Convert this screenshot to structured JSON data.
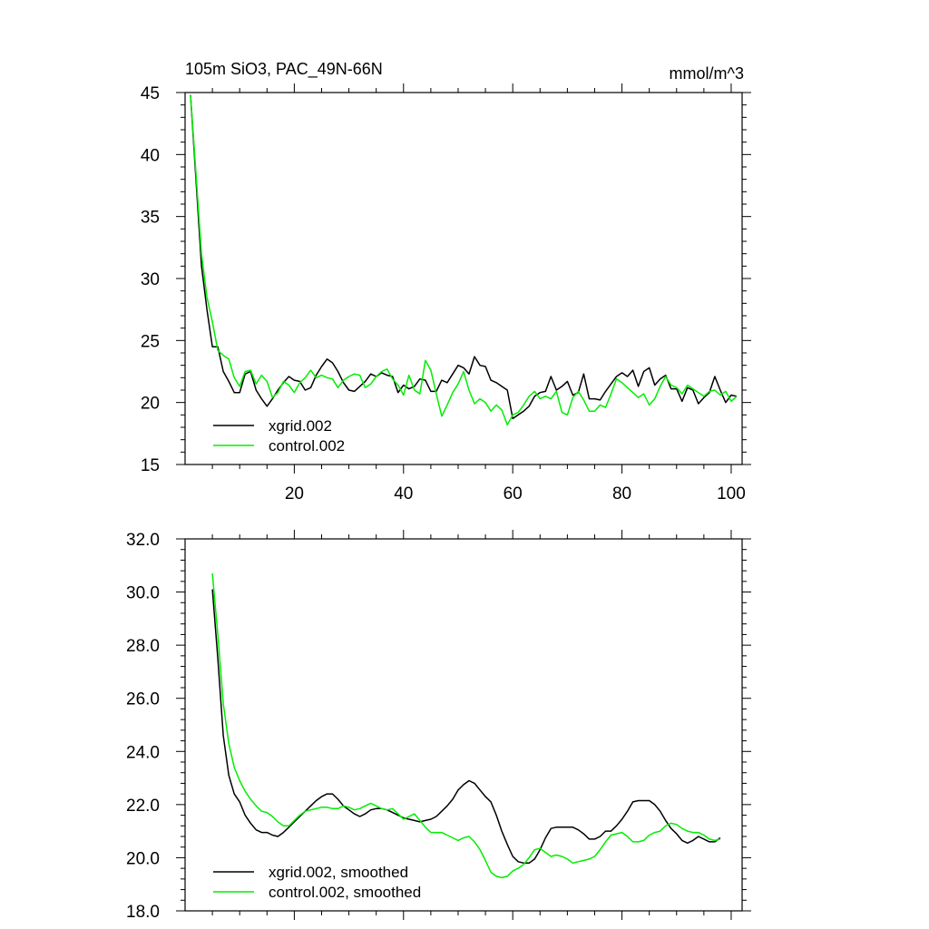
{
  "chart_data": [
    {
      "type": "line",
      "title": "105m SiO3, PAC_49N-66N",
      "units": "mmol/m^3",
      "xlim": [
        0,
        102
      ],
      "ylim": [
        15,
        45
      ],
      "xticks": [
        20,
        40,
        60,
        80,
        100
      ],
      "xtick_labels": [
        "20",
        "40",
        "60",
        "80",
        "100"
      ],
      "yticks": [
        15,
        20,
        25,
        30,
        35,
        40,
        45
      ],
      "ytick_labels": [
        "15",
        "20",
        "25",
        "30",
        "35",
        "40",
        "45"
      ],
      "grid": false,
      "legend_position": "bottom-left",
      "series": [
        {
          "name": "xgrid.002",
          "color": "#000000",
          "x": [
            1,
            2,
            3,
            4,
            5,
            6,
            7,
            8,
            9,
            10,
            11,
            12,
            13,
            14,
            15,
            16,
            17,
            18,
            19,
            20,
            21,
            22,
            23,
            24,
            25,
            26,
            27,
            28,
            29,
            30,
            31,
            32,
            33,
            34,
            35,
            36,
            37,
            38,
            39,
            40,
            41,
            42,
            43,
            44,
            45,
            46,
            47,
            48,
            49,
            50,
            51,
            52,
            53,
            54,
            55,
            56,
            57,
            58,
            59,
            60,
            61,
            62,
            63,
            64,
            65,
            66,
            67,
            68,
            69,
            70,
            71,
            72,
            73,
            74,
            75,
            76,
            77,
            78,
            79,
            80,
            81,
            82,
            83,
            84,
            85,
            86,
            87,
            88,
            89,
            90,
            91,
            92,
            93,
            94,
            95,
            96,
            97,
            98,
            99,
            100,
            101
          ],
          "values": [
            44.8,
            38.0,
            31.0,
            27.5,
            24.5,
            24.5,
            22.5,
            21.7,
            20.8,
            20.8,
            22.3,
            22.5,
            21.0,
            20.3,
            19.7,
            20.3,
            21.0,
            21.6,
            22.1,
            21.8,
            21.7,
            21.0,
            21.2,
            22.2,
            22.9,
            23.5,
            23.2,
            22.5,
            21.6,
            21.0,
            20.9,
            21.3,
            21.7,
            22.3,
            22.1,
            22.4,
            22.2,
            22.1,
            20.8,
            21.4,
            21.1,
            21.3,
            21.9,
            21.8,
            20.9,
            20.9,
            21.8,
            21.6,
            22.3,
            23.0,
            22.8,
            22.3,
            23.7,
            23.0,
            22.9,
            21.8,
            21.6,
            21.3,
            21.0,
            18.7,
            19.0,
            19.3,
            19.7,
            20.5,
            20.8,
            20.9,
            22.1,
            21.0,
            21.3,
            21.7,
            20.6,
            20.8,
            22.3,
            20.3,
            20.3,
            20.2,
            20.9,
            21.5,
            22.1,
            22.4,
            22.1,
            22.6,
            21.3,
            22.5,
            22.8,
            21.4,
            21.9,
            22.2,
            21.1,
            21.1,
            20.1,
            21.2,
            21.0,
            19.9,
            20.4,
            20.8,
            22.1,
            21.0,
            20.0,
            20.6,
            20.5
          ]
        },
        {
          "name": "control.002",
          "color": "#00ee00",
          "x": [
            1,
            2,
            3,
            4,
            5,
            6,
            7,
            8,
            9,
            10,
            11,
            12,
            13,
            14,
            15,
            16,
            17,
            18,
            19,
            20,
            21,
            22,
            23,
            24,
            25,
            26,
            27,
            28,
            29,
            30,
            31,
            32,
            33,
            34,
            35,
            36,
            37,
            38,
            39,
            40,
            41,
            42,
            43,
            44,
            45,
            46,
            47,
            48,
            49,
            50,
            51,
            52,
            53,
            54,
            55,
            56,
            57,
            58,
            59,
            60,
            61,
            62,
            63,
            64,
            65,
            66,
            67,
            68,
            69,
            70,
            71,
            72,
            73,
            74,
            75,
            76,
            77,
            78,
            79,
            80,
            81,
            82,
            83,
            84,
            85,
            86,
            87,
            88,
            89,
            90,
            91,
            92,
            93,
            94,
            95,
            96,
            97,
            98,
            99,
            100,
            101
          ],
          "values": [
            44.8,
            38.5,
            32.0,
            28.5,
            26.5,
            24.2,
            23.8,
            23.5,
            22.0,
            21.3,
            22.5,
            22.6,
            21.5,
            22.2,
            21.7,
            20.4,
            20.8,
            21.7,
            21.4,
            20.8,
            21.6,
            22.0,
            22.6,
            22.0,
            22.2,
            22.0,
            21.9,
            21.2,
            21.8,
            22.1,
            22.3,
            22.2,
            21.2,
            21.5,
            22.1,
            22.5,
            22.7,
            21.9,
            21.4,
            20.6,
            22.2,
            21.0,
            20.7,
            23.4,
            22.6,
            20.7,
            18.9,
            19.8,
            20.8,
            21.5,
            22.5,
            21.0,
            19.9,
            20.3,
            20.0,
            19.3,
            19.8,
            19.4,
            18.2,
            19.0,
            19.2,
            19.8,
            20.5,
            20.9,
            20.3,
            20.5,
            20.3,
            20.9,
            19.2,
            19.0,
            20.4,
            20.9,
            20.2,
            19.3,
            19.3,
            19.8,
            19.6,
            20.7,
            21.9,
            21.6,
            21.2,
            20.8,
            20.4,
            20.7,
            19.8,
            20.3,
            21.3,
            22.1,
            21.4,
            21.2,
            20.7,
            21.4,
            21.1,
            20.8,
            20.5,
            20.9,
            21.0,
            20.6,
            20.9,
            20.1,
            20.5
          ]
        }
      ]
    },
    {
      "type": "line",
      "xlim": [
        0,
        102
      ],
      "ylim": [
        18,
        32
      ],
      "xticks": [
        20,
        40,
        60,
        80,
        100
      ],
      "xtick_labels": [],
      "yticks": [
        18,
        20,
        22,
        24,
        26,
        28,
        30,
        32
      ],
      "ytick_labels": [
        "18.0",
        "20.0",
        "22.0",
        "24.0",
        "26.0",
        "28.0",
        "30.0",
        "32.0"
      ],
      "grid": false,
      "legend_position": "bottom-left",
      "series": [
        {
          "name": "xgrid.002, smoothed",
          "color": "#000000",
          "x": [
            5,
            6,
            7,
            8,
            9,
            10,
            11,
            12,
            13,
            14,
            15,
            16,
            17,
            18,
            19,
            20,
            21,
            22,
            23,
            24,
            25,
            26,
            27,
            28,
            29,
            30,
            31,
            32,
            33,
            34,
            35,
            36,
            37,
            38,
            39,
            40,
            41,
            42,
            43,
            44,
            45,
            46,
            47,
            48,
            49,
            50,
            51,
            52,
            53,
            54,
            55,
            56,
            57,
            58,
            59,
            60,
            61,
            62,
            63,
            64,
            65,
            66,
            67,
            68,
            69,
            70,
            71,
            72,
            73,
            74,
            75,
            76,
            77,
            78,
            79,
            80,
            81,
            82,
            83,
            84,
            85,
            86,
            87,
            88,
            89,
            90,
            91,
            92,
            93,
            94,
            95,
            96,
            97,
            98
          ],
          "values": [
            30.1,
            27.5,
            24.6,
            23.1,
            22.4,
            22.1,
            21.6,
            21.3,
            21.05,
            20.95,
            20.95,
            20.85,
            20.8,
            20.95,
            21.15,
            21.35,
            21.55,
            21.75,
            21.95,
            22.15,
            22.3,
            22.4,
            22.4,
            22.2,
            21.95,
            21.8,
            21.65,
            21.55,
            21.65,
            21.8,
            21.85,
            21.85,
            21.8,
            21.7,
            21.6,
            21.5,
            21.45,
            21.4,
            21.35,
            21.4,
            21.45,
            21.55,
            21.75,
            21.95,
            22.2,
            22.55,
            22.75,
            22.9,
            22.8,
            22.55,
            22.3,
            22.1,
            21.6,
            21.0,
            20.5,
            20.05,
            19.85,
            19.8,
            19.8,
            19.95,
            20.3,
            20.75,
            21.1,
            21.15,
            21.15,
            21.15,
            21.15,
            21.05,
            20.9,
            20.7,
            20.7,
            20.8,
            21.0,
            21.0,
            21.2,
            21.45,
            21.75,
            22.1,
            22.15,
            22.15,
            22.15,
            22.0,
            21.75,
            21.4,
            21.1,
            20.9,
            20.65,
            20.55,
            20.65,
            20.8,
            20.7,
            20.6,
            20.6,
            20.75
          ]
        },
        {
          "name": "control.002, smoothed",
          "color": "#00ee00",
          "x": [
            5,
            6,
            7,
            8,
            9,
            10,
            11,
            12,
            13,
            14,
            15,
            16,
            17,
            18,
            19,
            20,
            21,
            22,
            23,
            24,
            25,
            26,
            27,
            28,
            29,
            30,
            31,
            32,
            33,
            34,
            35,
            36,
            37,
            38,
            39,
            40,
            41,
            42,
            43,
            44,
            45,
            46,
            47,
            48,
            49,
            50,
            51,
            52,
            53,
            54,
            55,
            56,
            57,
            58,
            59,
            60,
            61,
            62,
            63,
            64,
            65,
            66,
            67,
            68,
            69,
            70,
            71,
            72,
            73,
            74,
            75,
            76,
            77,
            78,
            79,
            80,
            81,
            82,
            83,
            84,
            85,
            86,
            87,
            88,
            89,
            90,
            91,
            92,
            93,
            94,
            95,
            96,
            97,
            98
          ],
          "values": [
            30.7,
            28.4,
            25.8,
            24.3,
            23.4,
            22.9,
            22.5,
            22.2,
            21.95,
            21.75,
            21.7,
            21.55,
            21.35,
            21.2,
            21.2,
            21.4,
            21.6,
            21.75,
            21.8,
            21.85,
            21.9,
            21.9,
            21.85,
            21.85,
            21.95,
            21.9,
            21.8,
            21.85,
            21.95,
            22.05,
            21.95,
            21.85,
            21.8,
            21.85,
            21.65,
            21.45,
            21.55,
            21.65,
            21.4,
            21.15,
            20.95,
            20.95,
            20.95,
            20.85,
            20.75,
            20.65,
            20.75,
            20.8,
            20.6,
            20.3,
            19.9,
            19.45,
            19.3,
            19.25,
            19.3,
            19.5,
            19.6,
            19.75,
            20.0,
            20.3,
            20.35,
            20.2,
            20.05,
            20.1,
            20.05,
            19.95,
            19.8,
            19.85,
            19.9,
            19.95,
            20.05,
            20.3,
            20.6,
            20.85,
            20.9,
            20.95,
            20.8,
            20.6,
            20.6,
            20.65,
            20.85,
            20.95,
            21.0,
            21.2,
            21.3,
            21.25,
            21.1,
            21.0,
            20.95,
            20.95,
            20.85,
            20.7,
            20.65,
            20.7
          ]
        }
      ]
    }
  ]
}
